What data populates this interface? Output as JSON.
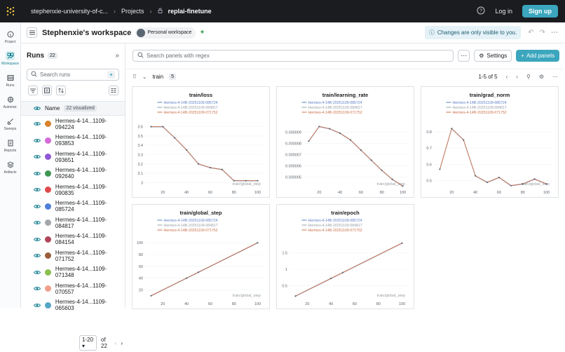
{
  "topbar": {
    "org": "stephenxie-university-of-c...",
    "projects": "Projects",
    "project": "replai-finetune",
    "login": "Log in",
    "signup": "Sign up"
  },
  "nav": [
    {
      "label": "Project",
      "icon": "info-icon"
    },
    {
      "label": "Workspace",
      "icon": "workspace-icon",
      "active": true
    },
    {
      "label": "Runs",
      "icon": "table-icon"
    },
    {
      "label": "Automat.",
      "icon": "automation-icon"
    },
    {
      "label": "Sweeps",
      "icon": "broom-icon"
    },
    {
      "label": "Reports",
      "icon": "report-icon"
    },
    {
      "label": "Artifacts",
      "icon": "artifact-icon"
    }
  ],
  "header": {
    "title": "Stephenxie's workspace",
    "badge": "Personal workspace",
    "notice": "Changes are only visible to you."
  },
  "runs": {
    "title": "Runs",
    "count": "22",
    "search_placeholder": "Search runs",
    "name_col": "Name",
    "visualized": "22 visualized",
    "items": [
      {
        "prefix": "Hermes-4-14...",
        "suffix": "1109-094224",
        "color": "#d9822b"
      },
      {
        "prefix": "Hermes-4-14...",
        "suffix": "1109-093853",
        "color": "#d56ad9"
      },
      {
        "prefix": "Hermes-4-14...",
        "suffix": "1109-093651",
        "color": "#8e57d6"
      },
      {
        "prefix": "Hermes-4-14...",
        "suffix": "1109-092640",
        "color": "#3f9654"
      },
      {
        "prefix": "Hermes-4-14...",
        "suffix": "1109-090835",
        "color": "#de4b4b"
      },
      {
        "prefix": "Hermes-4-14...",
        "suffix": "1109-085724",
        "color": "#4f7fd6"
      },
      {
        "prefix": "Hermes-4-14...",
        "suffix": "1109-084817",
        "color": "#a3a7ab"
      },
      {
        "prefix": "Hermes-4-14...",
        "suffix": "1109-084154",
        "color": "#b0455a"
      },
      {
        "prefix": "Hermes-4-14...",
        "suffix": "1109-071752",
        "color": "#9a5d3b"
      },
      {
        "prefix": "Hermes-4-14...",
        "suffix": "1109-071348",
        "color": "#8cbf4e"
      },
      {
        "prefix": "Hermes-4-14...",
        "suffix": "1109-070557",
        "color": "#f0a08a"
      },
      {
        "prefix": "Hermes-4-14...",
        "suffix": "1109-065603",
        "color": "#55a5c7"
      }
    ],
    "pager": {
      "range": "1-20",
      "of": "of 22"
    }
  },
  "main": {
    "search_placeholder": "Search panels with regex",
    "settings": "Settings",
    "add": "Add panels",
    "section": "train",
    "section_count": "5",
    "page_info": "1-5 of 5"
  },
  "legend": [
    {
      "name": "Hermes-4-14B-20251109-085724",
      "color": "#5b7fc7"
    },
    {
      "name": "Hermes-4-14B-20251109-084817",
      "color": "#9aa0a6"
    },
    {
      "name": "Hermes-4-14B-20251109-071752",
      "color": "#c9704a"
    }
  ],
  "chart_data": [
    {
      "type": "line",
      "title": "train/loss",
      "xlabel": "train/global_step",
      "xlim": [
        5,
        105
      ],
      "ylim": [
        2.95,
        3.65
      ],
      "xticks": [
        "20",
        "40",
        "60",
        "80",
        "100"
      ],
      "xtick_vals": [
        20,
        40,
        60,
        80,
        100
      ],
      "yticks": [
        "3",
        "3.1",
        "3.2",
        "3.3",
        "3.4",
        "3.5",
        "3.6"
      ],
      "ytick_vals": [
        3,
        3.1,
        3.2,
        3.3,
        3.4,
        3.5,
        3.6
      ],
      "x": [
        10,
        20,
        30,
        40,
        50,
        60,
        70,
        80,
        90,
        100
      ],
      "y": [
        3.6,
        3.6,
        3.48,
        3.35,
        3.2,
        3.16,
        3.14,
        3.02,
        3.02,
        3.02
      ]
    },
    {
      "type": "line",
      "title": "train/learning_rate",
      "xlabel": "train/global_step",
      "xlim": [
        5,
        105
      ],
      "ylim": [
        4.1e-06,
        9.9e-06
      ],
      "xticks": [
        "20",
        "40",
        "60",
        "80",
        "100"
      ],
      "xtick_vals": [
        20,
        40,
        60,
        80,
        100
      ],
      "yticks": [
        "0.000005",
        "0.000006",
        "0.000007",
        "0.000008",
        "0.000009"
      ],
      "ytick_vals": [
        5e-06,
        6e-06,
        7e-06,
        8e-06,
        9e-06
      ],
      "x": [
        10,
        20,
        30,
        40,
        50,
        60,
        70,
        80,
        90,
        100
      ],
      "y": [
        8.2e-06,
        9.5e-06,
        9.3e-06,
        8.9e-06,
        8.3e-06,
        7.4e-06,
        6.5e-06,
        5.6e-06,
        4.8e-06,
        4.2e-06
      ]
    },
    {
      "type": "line",
      "title": "train/grad_norm",
      "xlabel": "train/global_step",
      "xlim": [
        5,
        105
      ],
      "ylim": [
        0.46,
        0.86
      ],
      "xticks": [
        "20",
        "40",
        "60",
        "80",
        "100"
      ],
      "xtick_vals": [
        20,
        40,
        60,
        80,
        100
      ],
      "yticks": [
        "0.5",
        "0.6",
        "0.7",
        "0.8"
      ],
      "ytick_vals": [
        0.5,
        0.6,
        0.7,
        0.8
      ],
      "x": [
        10,
        20,
        30,
        40,
        50,
        60,
        70,
        80,
        90,
        100
      ],
      "y": [
        0.57,
        0.82,
        0.75,
        0.53,
        0.49,
        0.52,
        0.47,
        0.48,
        0.51,
        0.48
      ]
    },
    {
      "type": "line",
      "title": "train/global_step",
      "xlabel": "train/global_step",
      "xlim": [
        5,
        105
      ],
      "ylim": [
        5,
        105
      ],
      "xticks": [
        "20",
        "40",
        "60",
        "80",
        "100"
      ],
      "xtick_vals": [
        20,
        40,
        60,
        80,
        100
      ],
      "yticks": [
        "20",
        "40",
        "60",
        "80",
        "100"
      ],
      "ytick_vals": [
        20,
        40,
        60,
        80,
        100
      ],
      "x": [
        10,
        40,
        50,
        100
      ],
      "y": [
        10,
        40,
        50,
        100
      ]
    },
    {
      "type": "line",
      "title": "train/epoch",
      "xlabel": "train/global_step",
      "xlim": [
        5,
        105
      ],
      "ylim": [
        0.1,
        1.9
      ],
      "xticks": [
        "20",
        "40",
        "60",
        "80",
        "100"
      ],
      "xtick_vals": [
        20,
        40,
        60,
        80,
        100
      ],
      "yticks": [
        "0.5",
        "1",
        "1.5"
      ],
      "ytick_vals": [
        0.5,
        1,
        1.5
      ],
      "x": [
        10,
        40,
        50,
        100
      ],
      "y": [
        0.18,
        0.72,
        0.9,
        1.8
      ]
    }
  ]
}
